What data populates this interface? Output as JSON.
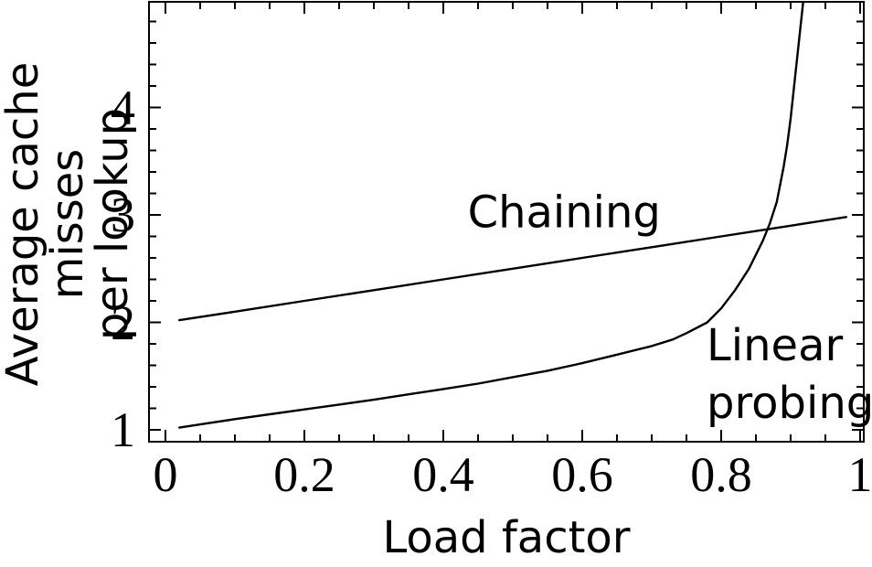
{
  "figure": {
    "background": "#ffffff",
    "ink": "#000000"
  },
  "chart_data": {
    "type": "line",
    "title": "",
    "xlabel": "Load factor",
    "ylabel": "Average cache misses per lookup",
    "ylabel_lines": [
      "Average cache misses",
      "per lookup"
    ],
    "xlim": [
      0,
      1
    ],
    "ylim": [
      1,
      5
    ],
    "grid": false,
    "frame": true,
    "legend_position": "inline-annotations",
    "x_ticks": [
      0,
      0.2,
      0.4,
      0.6,
      0.8,
      1
    ],
    "x_tick_labels": [
      "0",
      "0.2",
      "0.4",
      "0.6",
      "0.8",
      "1"
    ],
    "x_minor_tick_step": 0.05,
    "y_ticks": [
      1,
      2,
      3,
      4
    ],
    "y_tick_labels": [
      "1",
      "2",
      "3",
      "4"
    ],
    "y_minor_tick_step": 0.2,
    "series": [
      {
        "name": "Chaining",
        "points": [
          [
            0.02,
            2.02
          ],
          [
            0.1,
            2.1
          ],
          [
            0.2,
            2.2
          ],
          [
            0.3,
            2.3
          ],
          [
            0.4,
            2.4
          ],
          [
            0.5,
            2.5
          ],
          [
            0.6,
            2.6
          ],
          [
            0.7,
            2.7
          ],
          [
            0.8,
            2.8
          ],
          [
            0.9,
            2.9
          ],
          [
            0.98,
            2.98
          ]
        ]
      },
      {
        "name": "Linear probing",
        "points": [
          [
            0.02,
            1.02
          ],
          [
            0.05,
            1.05
          ],
          [
            0.1,
            1.1
          ],
          [
            0.15,
            1.145
          ],
          [
            0.2,
            1.19
          ],
          [
            0.25,
            1.235
          ],
          [
            0.3,
            1.28
          ],
          [
            0.35,
            1.33
          ],
          [
            0.4,
            1.38
          ],
          [
            0.45,
            1.43
          ],
          [
            0.5,
            1.49
          ],
          [
            0.55,
            1.55
          ],
          [
            0.6,
            1.62
          ],
          [
            0.65,
            1.7
          ],
          [
            0.7,
            1.78
          ],
          [
            0.73,
            1.84
          ],
          [
            0.75,
            1.9
          ],
          [
            0.78,
            2.0
          ],
          [
            0.8,
            2.13
          ],
          [
            0.82,
            2.3
          ],
          [
            0.84,
            2.5
          ],
          [
            0.86,
            2.76
          ],
          [
            0.87,
            2.92
          ],
          [
            0.88,
            3.12
          ],
          [
            0.89,
            3.45
          ],
          [
            0.895,
            3.65
          ],
          [
            0.9,
            3.9
          ],
          [
            0.905,
            4.2
          ],
          [
            0.91,
            4.5
          ],
          [
            0.915,
            4.8
          ],
          [
            0.92,
            5.1
          ]
        ]
      }
    ],
    "annotations": [
      {
        "text": "Chaining",
        "lines": [
          "Chaining"
        ],
        "x": 0.574,
        "y": 3.02,
        "align": "center"
      },
      {
        "text": "Linear probing",
        "lines": [
          "Linear",
          "probing"
        ],
        "x": 0.779,
        "y": 2.05,
        "align": "left-top"
      }
    ]
  }
}
